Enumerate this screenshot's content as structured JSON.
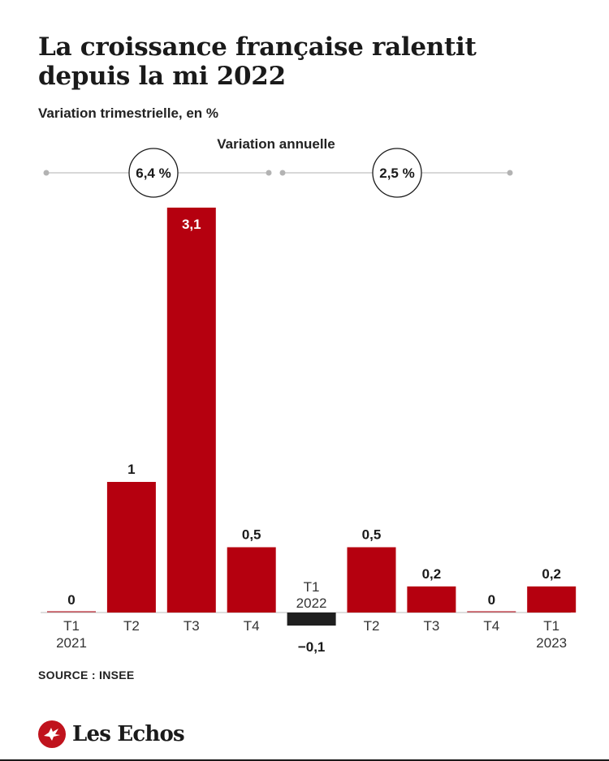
{
  "title": "La croissance française ralentit depuis la mi 2022",
  "subtitle": "Variation trimestrielle, en %",
  "annual_label": "Variation annuelle",
  "source": "SOURCE : INSEE",
  "brand": "Les Echos",
  "colors": {
    "positive_bar": "#b5000f",
    "negative_bar": "#1f1f1f",
    "brand_red": "#c0131d",
    "bracket_line": "#cccccc",
    "text": "#1a1a1a"
  },
  "chart_data": {
    "type": "bar",
    "title": "La croissance française ralentit depuis la mi 2022",
    "subtitle": "Variation trimestrielle, en %",
    "categories": [
      [
        "T1",
        "2021"
      ],
      [
        "T2"
      ],
      [
        "T3"
      ],
      [
        "T4"
      ],
      [
        "T1",
        "2022"
      ],
      [
        "T2"
      ],
      [
        "T3"
      ],
      [
        "T4"
      ],
      [
        "T1",
        "2023"
      ]
    ],
    "values": [
      0,
      1,
      3.1,
      0.5,
      -0.1,
      0.5,
      0.2,
      0,
      0.2
    ],
    "value_labels": [
      "0",
      "1",
      "3,1",
      "0,5",
      "−0,1",
      "0,5",
      "0,2",
      "0",
      "0,2"
    ],
    "annual_variation": [
      {
        "label": "6,4 %",
        "from_index": 0,
        "to_index": 3
      },
      {
        "label": "2,5 %",
        "from_index": 4,
        "to_index": 7
      }
    ],
    "ylim": [
      -0.1,
      3.1
    ],
    "grid": false,
    "legend": "none"
  }
}
